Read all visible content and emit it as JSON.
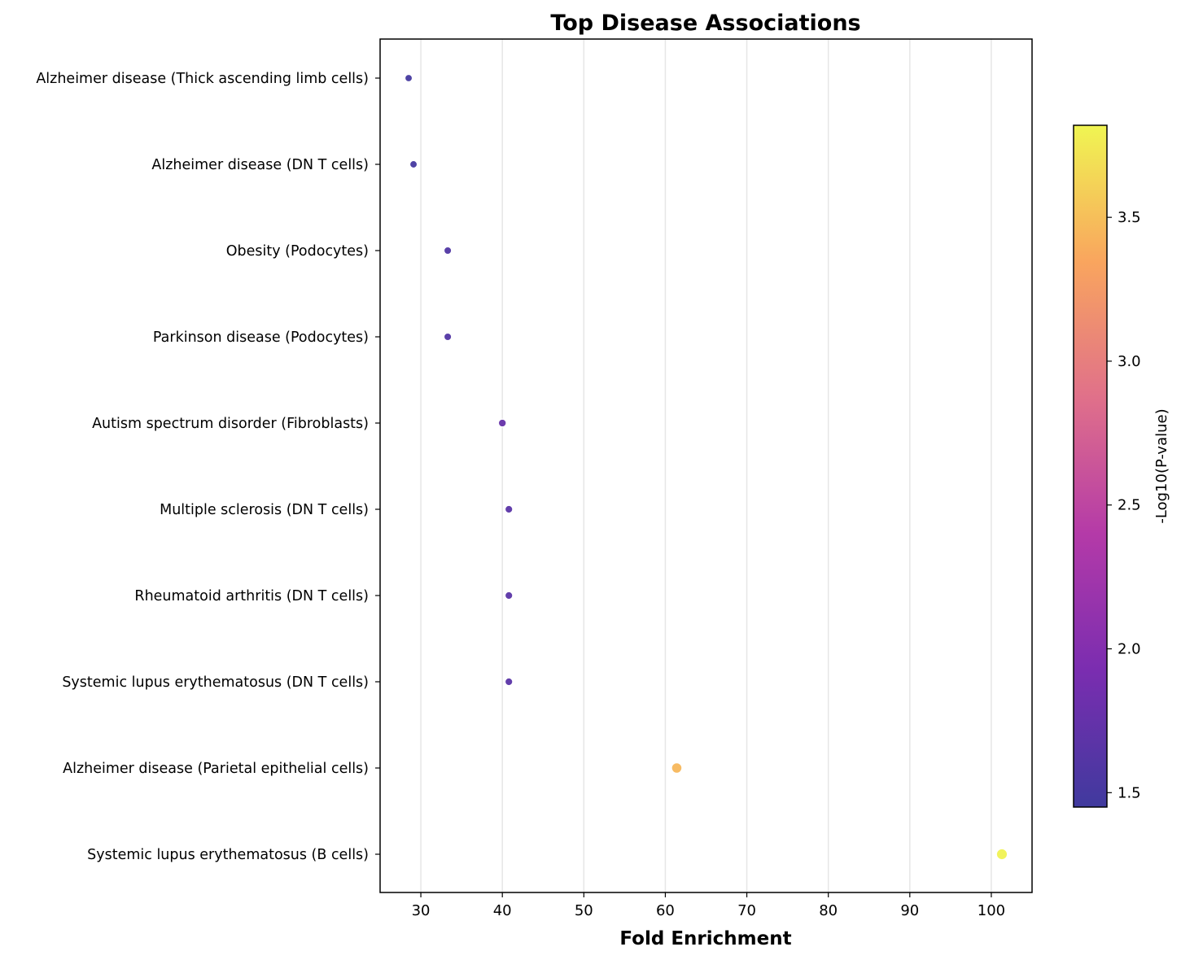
{
  "chart_data": {
    "type": "scatter",
    "title": "Top Disease Associations",
    "xlabel": "Fold Enrichment",
    "ylabel": "",
    "xlim": [
      25,
      105
    ],
    "xticks": [
      30,
      40,
      50,
      60,
      70,
      80,
      90,
      100
    ],
    "x_grid": true,
    "categories": [
      "Alzheimer disease (Thick ascending limb cells)",
      "Alzheimer disease (DN T cells)",
      "Obesity (Podocytes)",
      "Parkinson disease (Podocytes)",
      "Autism spectrum disorder (Fibroblasts)",
      "Multiple sclerosis (DN T cells)",
      "Rheumatoid arthritis (DN T cells)",
      "Systemic lupus erythematosus (DN T cells)",
      "Alzheimer disease (Parietal epithelial cells)",
      "Systemic lupus erythematosus (B cells)"
    ],
    "x": [
      28.5,
      29.1,
      33.3,
      33.3,
      40.0,
      40.8,
      40.8,
      40.8,
      61.4,
      101.3
    ],
    "color_values": [
      1.48,
      1.5,
      1.58,
      1.6,
      1.75,
      1.66,
      1.66,
      1.66,
      3.45,
      3.8
    ],
    "colorbar": {
      "label": "-Log10(P-value)",
      "range": [
        1.45,
        3.82
      ],
      "ticks": [
        1.5,
        2.0,
        2.5,
        3.0,
        3.5
      ],
      "colormap": "plasma"
    }
  }
}
